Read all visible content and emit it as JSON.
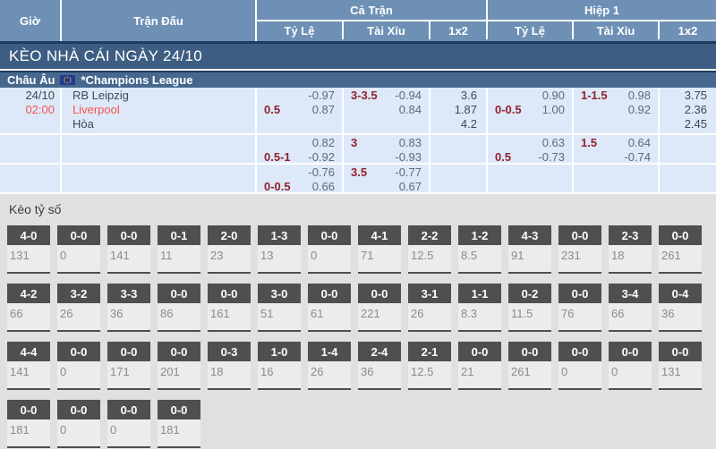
{
  "table_header": {
    "time": "Giờ",
    "match": "Trận Đấu",
    "full_time": "Cả Trận",
    "first_half": "Hiệp 1",
    "handicap": "Tỷ Lệ",
    "over_under": "Tài Xỉu",
    "one_x_two": "1x2"
  },
  "date_bar": {
    "title": "KÈO NHÀ CÁI NGÀY 24/10"
  },
  "league_bar": {
    "region": "Châu Âu",
    "league": "*Champions League",
    "flag_icon": "eu-flag"
  },
  "match": {
    "date": "24/10",
    "time": "02:00",
    "home": "RB Leipzig",
    "away": "Liverpool",
    "draw": "Hòa"
  },
  "odds_rows": [
    {
      "ft_hdp": {
        "tl": "",
        "tv": "-0.97",
        "bl": "0.5",
        "bv": "0.87"
      },
      "ft_ou": {
        "tl": "3-3.5",
        "tv": "-0.94",
        "bl": "",
        "bv": "0.84"
      },
      "ft_1x2": {
        "v1": "3.6",
        "v2": "1.87",
        "v3": "4.2"
      },
      "h1_hdp": {
        "tl": "",
        "tv": "0.90",
        "bl": "0-0.5",
        "bv": "1.00"
      },
      "h1_ou": {
        "tl": "1-1.5",
        "tv": "0.98",
        "bl": "",
        "bv": "0.92"
      },
      "h1_1x2": {
        "v1": "3.75",
        "v2": "2.36",
        "v3": "2.45"
      }
    },
    {
      "ft_hdp": {
        "tl": "",
        "tv": "0.82",
        "bl": "0.5-1",
        "bv": "-0.92"
      },
      "ft_ou": {
        "tl": "3",
        "tv": "0.83",
        "bl": "",
        "bv": "-0.93"
      },
      "ft_1x2": {
        "v1": "",
        "v2": "",
        "v3": ""
      },
      "h1_hdp": {
        "tl": "",
        "tv": "0.63",
        "bl": "0.5",
        "bv": "-0.73"
      },
      "h1_ou": {
        "tl": "1.5",
        "tv": "0.64",
        "bl": "",
        "bv": "-0.74"
      },
      "h1_1x2": {
        "v1": "",
        "v2": "",
        "v3": ""
      }
    },
    {
      "ft_hdp": {
        "tl": "",
        "tv": "-0.76",
        "bl": "0-0.5",
        "bv": "0.66"
      },
      "ft_ou": {
        "tl": "3.5",
        "tv": "-0.77",
        "bl": "",
        "bv": "0.67"
      },
      "ft_1x2": {
        "v1": "",
        "v2": "",
        "v3": ""
      },
      "h1_hdp": {
        "tl": "",
        "tv": "",
        "bl": "",
        "bv": ""
      },
      "h1_ou": {
        "tl": "",
        "tv": "",
        "bl": "",
        "bv": ""
      },
      "h1_1x2": {
        "v1": "",
        "v2": "",
        "v3": ""
      }
    }
  ],
  "score_section": {
    "title": "Kèo tỷ số",
    "rows": [
      [
        {
          "score": "4-0",
          "odds": "131"
        },
        {
          "score": "0-0",
          "odds": "0"
        },
        {
          "score": "0-0",
          "odds": "141"
        },
        {
          "score": "0-1",
          "odds": "11"
        },
        {
          "score": "2-0",
          "odds": "23"
        },
        {
          "score": "1-3",
          "odds": "13"
        },
        {
          "score": "0-0",
          "odds": "0"
        },
        {
          "score": "4-1",
          "odds": "71"
        },
        {
          "score": "2-2",
          "odds": "12.5"
        },
        {
          "score": "1-2",
          "odds": "8.5"
        },
        {
          "score": "4-3",
          "odds": "91"
        },
        {
          "score": "0-0",
          "odds": "231"
        },
        {
          "score": "2-3",
          "odds": "18"
        },
        {
          "score": "0-0",
          "odds": "261"
        }
      ],
      [
        {
          "score": "4-2",
          "odds": "66"
        },
        {
          "score": "3-2",
          "odds": "26"
        },
        {
          "score": "3-3",
          "odds": "36"
        },
        {
          "score": "0-0",
          "odds": "86"
        },
        {
          "score": "0-0",
          "odds": "161"
        },
        {
          "score": "3-0",
          "odds": "51"
        },
        {
          "score": "0-0",
          "odds": "61"
        },
        {
          "score": "0-0",
          "odds": "221"
        },
        {
          "score": "3-1",
          "odds": "26"
        },
        {
          "score": "1-1",
          "odds": "8.3"
        },
        {
          "score": "0-2",
          "odds": "11.5"
        },
        {
          "score": "0-0",
          "odds": "76"
        },
        {
          "score": "3-4",
          "odds": "66"
        },
        {
          "score": "0-4",
          "odds": "36"
        }
      ],
      [
        {
          "score": "4-4",
          "odds": "141"
        },
        {
          "score": "0-0",
          "odds": "0"
        },
        {
          "score": "0-0",
          "odds": "171"
        },
        {
          "score": "0-0",
          "odds": "201"
        },
        {
          "score": "0-3",
          "odds": "18"
        },
        {
          "score": "1-0",
          "odds": "16"
        },
        {
          "score": "1-4",
          "odds": "26"
        },
        {
          "score": "2-4",
          "odds": "36"
        },
        {
          "score": "2-1",
          "odds": "12.5"
        },
        {
          "score": "0-0",
          "odds": "21"
        },
        {
          "score": "0-0",
          "odds": "261"
        },
        {
          "score": "0-0",
          "odds": "0"
        },
        {
          "score": "0-0",
          "odds": "0"
        },
        {
          "score": "0-0",
          "odds": "131"
        }
      ],
      [
        {
          "score": "0-0",
          "odds": "181"
        },
        {
          "score": "0-0",
          "odds": "0"
        },
        {
          "score": "0-0",
          "odds": "0"
        },
        {
          "score": "0-0",
          "odds": "181"
        }
      ]
    ]
  },
  "colors": {
    "header_blue": "#6e90b5",
    "navy_line": "#1e3d5d",
    "date_bar_blue": "#3d5e82",
    "league_bar_blue": "#47688e",
    "row_blue": "#dde9f8",
    "accent_red": "#f4534f",
    "handicap_maroon": "#93212e",
    "section_gray": "#e1e0df",
    "badge_gray": "#4f4f4f"
  }
}
